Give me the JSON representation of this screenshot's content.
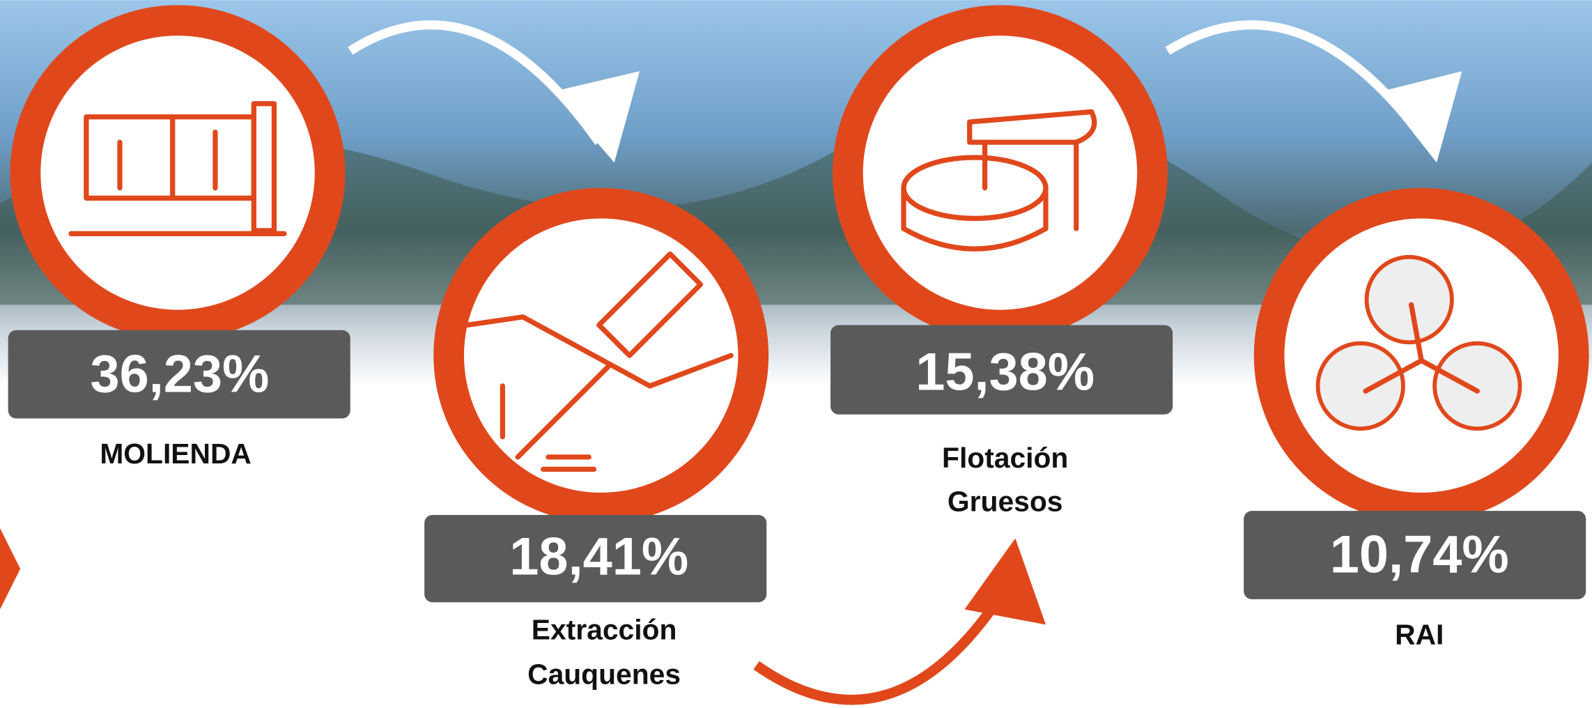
{
  "steps": [
    {
      "value": "36,23%",
      "label": [
        "MOLIENDA"
      ]
    },
    {
      "value": "18,41%",
      "label": [
        "Extracción",
        "Cauquenes"
      ]
    },
    {
      "value": "15,38%",
      "label": [
        "Flotación",
        "Gruesos"
      ]
    },
    {
      "value": "10,74%",
      "label": [
        "RAI"
      ]
    }
  ]
}
